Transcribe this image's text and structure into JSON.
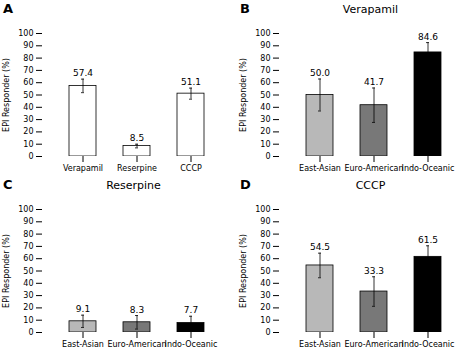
{
  "chart_data": [
    {
      "type": "bar",
      "annotations": [
        "A"
      ],
      "categories": [
        "Verapamil",
        "Reserpine",
        "CCCP"
      ],
      "values": [
        57.4,
        8.5,
        51.1
      ],
      "errors": [
        5.5,
        1.5,
        4.5
      ],
      "colors": [
        "#ffffff",
        "#ffffff",
        "#ffffff"
      ],
      "ylabel": "EPI Responder (%)",
      "ylim": [
        0,
        100
      ],
      "yticks": [
        0,
        10,
        20,
        30,
        40,
        50,
        60,
        70,
        80,
        90,
        100
      ],
      "data_labels": true
    },
    {
      "type": "bar",
      "title": "Verapamil",
      "annotations": [
        "B"
      ],
      "categories": [
        "East-Asian",
        "Euro-American",
        "Indo-Oceanic"
      ],
      "values": [
        50.0,
        41.7,
        84.6
      ],
      "value_labels": [
        "50.0",
        "41.7",
        "84.6"
      ],
      "errors": [
        13.0,
        14.0,
        8.0
      ],
      "colors": [
        "#b8b8b8",
        "#787878",
        "#000000"
      ],
      "ylabel": "EPI Responder (%)",
      "ylim": [
        0,
        100
      ],
      "yticks": [
        0,
        10,
        20,
        30,
        40,
        50,
        60,
        70,
        80,
        90,
        100
      ],
      "data_labels": true
    },
    {
      "type": "bar",
      "title": "Reserpine",
      "annotations": [
        "C"
      ],
      "categories": [
        "East-Asian",
        "Euro-American",
        "Indo-Oceanic"
      ],
      "values": [
        9.1,
        8.3,
        7.7
      ],
      "errors": [
        5.0,
        5.5,
        5.5
      ],
      "colors": [
        "#b8b8b8",
        "#787878",
        "#000000"
      ],
      "ylabel": "EPI Responder (%)",
      "ylim": [
        0,
        100
      ],
      "yticks": [
        0,
        10,
        20,
        30,
        40,
        50,
        60,
        70,
        80,
        90,
        100
      ],
      "data_labels": true
    },
    {
      "type": "bar",
      "title": "CCCP",
      "annotations": [
        "D"
      ],
      "categories": [
        "East-Asian",
        "Euro-American",
        "Indo-Oceanic"
      ],
      "values": [
        54.5,
        33.3,
        61.5
      ],
      "errors": [
        10.0,
        12.0,
        9.0
      ],
      "colors": [
        "#b8b8b8",
        "#787878",
        "#000000"
      ],
      "ylabel": "EPI Responder (%)",
      "ylim": [
        0,
        100
      ],
      "yticks": [
        0,
        10,
        20,
        30,
        40,
        50,
        60,
        70,
        80,
        90,
        100
      ],
      "data_labels": true
    }
  ]
}
